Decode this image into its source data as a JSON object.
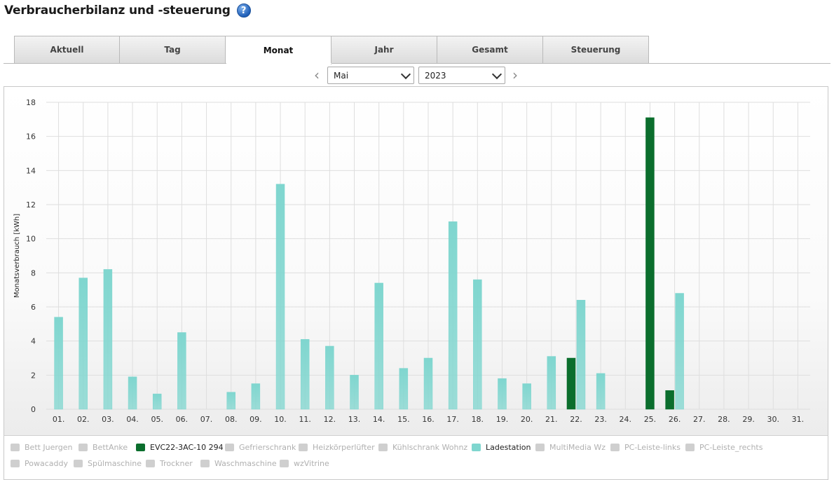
{
  "page": {
    "title": "Verbraucherbilanz und -steuerung",
    "help_icon": "question-mark-icon"
  },
  "tabs": [
    {
      "label": "Aktuell",
      "active": false
    },
    {
      "label": "Tag",
      "active": false
    },
    {
      "label": "Monat",
      "active": true
    },
    {
      "label": "Jahr",
      "active": false
    },
    {
      "label": "Gesamt",
      "active": false
    },
    {
      "label": "Steuerung",
      "active": false
    }
  ],
  "period": {
    "month": "Mai",
    "year": "2023",
    "prev_icon": "chevron-left-icon",
    "next_icon": "chevron-right-icon"
  },
  "colors": {
    "ladestation": "#7fd6cf",
    "evc": "#0b6e2d",
    "legend_inactive": "#cfcfcf",
    "grid": "#dedede"
  },
  "chart_data": {
    "type": "bar",
    "ylabel": "Monatsverbrauch [kWh]",
    "ylim": [
      0,
      18
    ],
    "yticks": [
      0,
      2,
      4,
      6,
      8,
      10,
      12,
      14,
      16,
      18
    ],
    "grid": true,
    "categories": [
      "01.",
      "02.",
      "03.",
      "04.",
      "05.",
      "06.",
      "07.",
      "08.",
      "09.",
      "10.",
      "11.",
      "12.",
      "13.",
      "14.",
      "15.",
      "16.",
      "17.",
      "18.",
      "19.",
      "20.",
      "21.",
      "22.",
      "23.",
      "24.",
      "25.",
      "26.",
      "27.",
      "28.",
      "29.",
      "30.",
      "31."
    ],
    "series": [
      {
        "name": "EVC22-3AC-10 294",
        "color": "#0b6e2d",
        "values": [
          0,
          0,
          0,
          0,
          0,
          0,
          0,
          0,
          0,
          0,
          0,
          0,
          0,
          0,
          0,
          0,
          0,
          0,
          0,
          0,
          0,
          3.0,
          0,
          0,
          17.1,
          1.1,
          0,
          0,
          0,
          0,
          0
        ]
      },
      {
        "name": "Ladestation",
        "color": "#7fd6cf",
        "values": [
          5.4,
          7.7,
          8.2,
          1.9,
          0.9,
          4.5,
          0,
          1.0,
          1.5,
          13.2,
          4.1,
          3.7,
          2.0,
          7.4,
          2.4,
          3.0,
          11.0,
          7.6,
          1.8,
          1.5,
          3.1,
          6.4,
          2.1,
          0,
          0,
          6.8,
          0,
          0,
          0,
          0,
          0
        ]
      }
    ]
  },
  "legend": [
    {
      "label": "Bett Juergen",
      "active": false
    },
    {
      "label": "BettAnke",
      "active": false
    },
    {
      "label": "EVC22-3AC-10 294",
      "active": true,
      "color": "#0b6e2d"
    },
    {
      "label": "Gefrierschrank",
      "active": false
    },
    {
      "label": "Heizkörperlüfter",
      "active": false
    },
    {
      "label": "Kühlschrank Wohnz",
      "active": false
    },
    {
      "label": "Ladestation",
      "active": true,
      "color": "#7fd6cf"
    },
    {
      "label": "MultiMedia Wz",
      "active": false
    },
    {
      "label": "PC-Leiste-links",
      "active": false
    },
    {
      "label": "PC-Leiste_rechts",
      "active": false
    },
    {
      "label": "Powacaddy",
      "active": false
    },
    {
      "label": "Spülmaschine",
      "active": false
    },
    {
      "label": "Trockner",
      "active": false
    },
    {
      "label": "Waschmaschine",
      "active": false
    },
    {
      "label": "wzVitrine",
      "active": false
    }
  ]
}
